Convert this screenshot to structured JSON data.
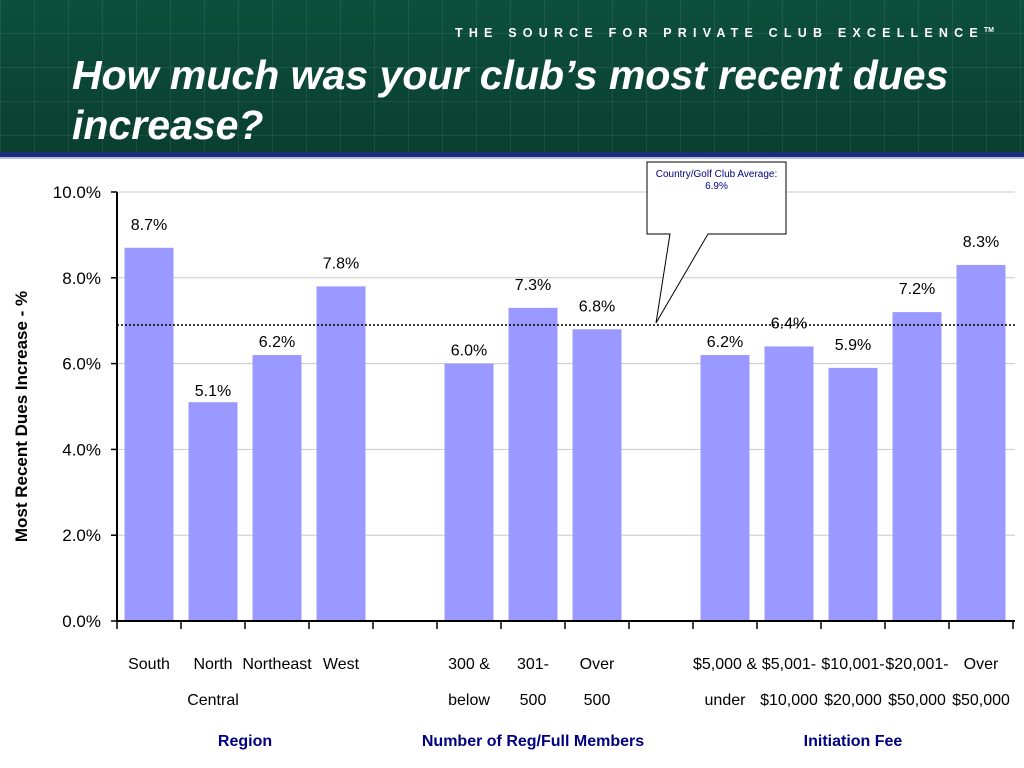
{
  "header": {
    "tagline": "THE SOURCE FOR PRIVATE CLUB EXCELLENCE",
    "tagline_mark": "TM",
    "title": "How much was your club’s most recent dues increase?"
  },
  "colors": {
    "header_bg": "#0d4f3c",
    "bar_fill": "#9999ff",
    "group_label": "#000080",
    "rule": "#1d2d78"
  },
  "chart_data": {
    "type": "bar",
    "ylabel": "Most Recent Dues Increase - %",
    "ylim": [
      0,
      10
    ],
    "yticks": [
      "0.0%",
      "2.0%",
      "4.0%",
      "6.0%",
      "8.0%",
      "10.0%"
    ],
    "grid": "horizontal",
    "groups": [
      {
        "name": "Region",
        "bars": [
          {
            "label": [
              "South"
            ],
            "value": 8.7,
            "value_label": "8.7%"
          },
          {
            "label": [
              "North",
              "Central"
            ],
            "value": 5.1,
            "value_label": "5.1%"
          },
          {
            "label": [
              "Northeast"
            ],
            "value": 6.2,
            "value_label": "6.2%"
          },
          {
            "label": [
              "West"
            ],
            "value": 7.8,
            "value_label": "7.8%"
          }
        ]
      },
      {
        "name": "Number of Reg/Full Members",
        "bars": [
          {
            "label": [
              "300 &",
              "below"
            ],
            "value": 6.0,
            "value_label": "6.0%"
          },
          {
            "label": [
              "301-",
              "500"
            ],
            "value": 7.3,
            "value_label": "7.3%"
          },
          {
            "label": [
              "Over",
              "500"
            ],
            "value": 6.8,
            "value_label": "6.8%"
          }
        ]
      },
      {
        "name": "Initiation Fee",
        "bars": [
          {
            "label": [
              "$5,000 &",
              "under"
            ],
            "value": 6.2,
            "value_label": "6.2%"
          },
          {
            "label": [
              "$5,001-",
              "$10,000"
            ],
            "value": 6.4,
            "value_label": "6.4%"
          },
          {
            "label": [
              "$10,001-",
              "$20,000"
            ],
            "value": 5.9,
            "value_label": "5.9%"
          },
          {
            "label": [
              "$20,001-",
              "$50,000"
            ],
            "value": 7.2,
            "value_label": "7.2%"
          },
          {
            "label": [
              "Over",
              "$50,000"
            ],
            "value": 8.3,
            "value_label": "8.3%"
          }
        ]
      }
    ],
    "reference_line": {
      "value": 6.9,
      "style": "dotted",
      "callout": [
        "Country/Golf Club Average:",
        "6.9%"
      ]
    }
  }
}
